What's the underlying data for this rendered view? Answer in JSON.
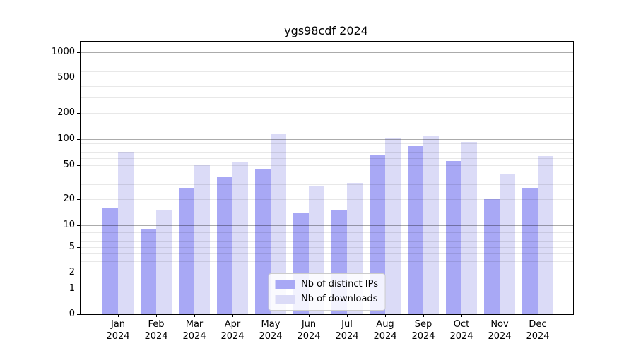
{
  "chart_data": {
    "type": "bar",
    "title": "ygs98cdf 2024",
    "categories": [
      "Jan 2024",
      "Feb 2024",
      "Mar 2024",
      "Apr 2024",
      "May 2024",
      "Jun 2024",
      "Jul 2024",
      "Aug 2024",
      "Sep 2024",
      "Oct 2024",
      "Nov 2024",
      "Dec 2024"
    ],
    "series": [
      {
        "name": "Nb of distinct IPs",
        "color": "#a8a8f5",
        "values": [
          16,
          9,
          27,
          37,
          45,
          14,
          15,
          66,
          83,
          56,
          20,
          27
        ]
      },
      {
        "name": "Nb of downloads",
        "color": "#dbdbf7",
        "values": [
          71,
          15,
          50,
          55,
          113,
          28,
          31,
          101,
          107,
          93,
          39,
          64
        ]
      }
    ],
    "yticks": [
      0,
      1,
      2,
      5,
      10,
      20,
      50,
      100,
      200,
      500,
      1000
    ],
    "ylim": [
      0,
      1400
    ],
    "yscale": "symlog",
    "grid": true,
    "legend_position": "lower center",
    "background_color": "#ffffff"
  }
}
